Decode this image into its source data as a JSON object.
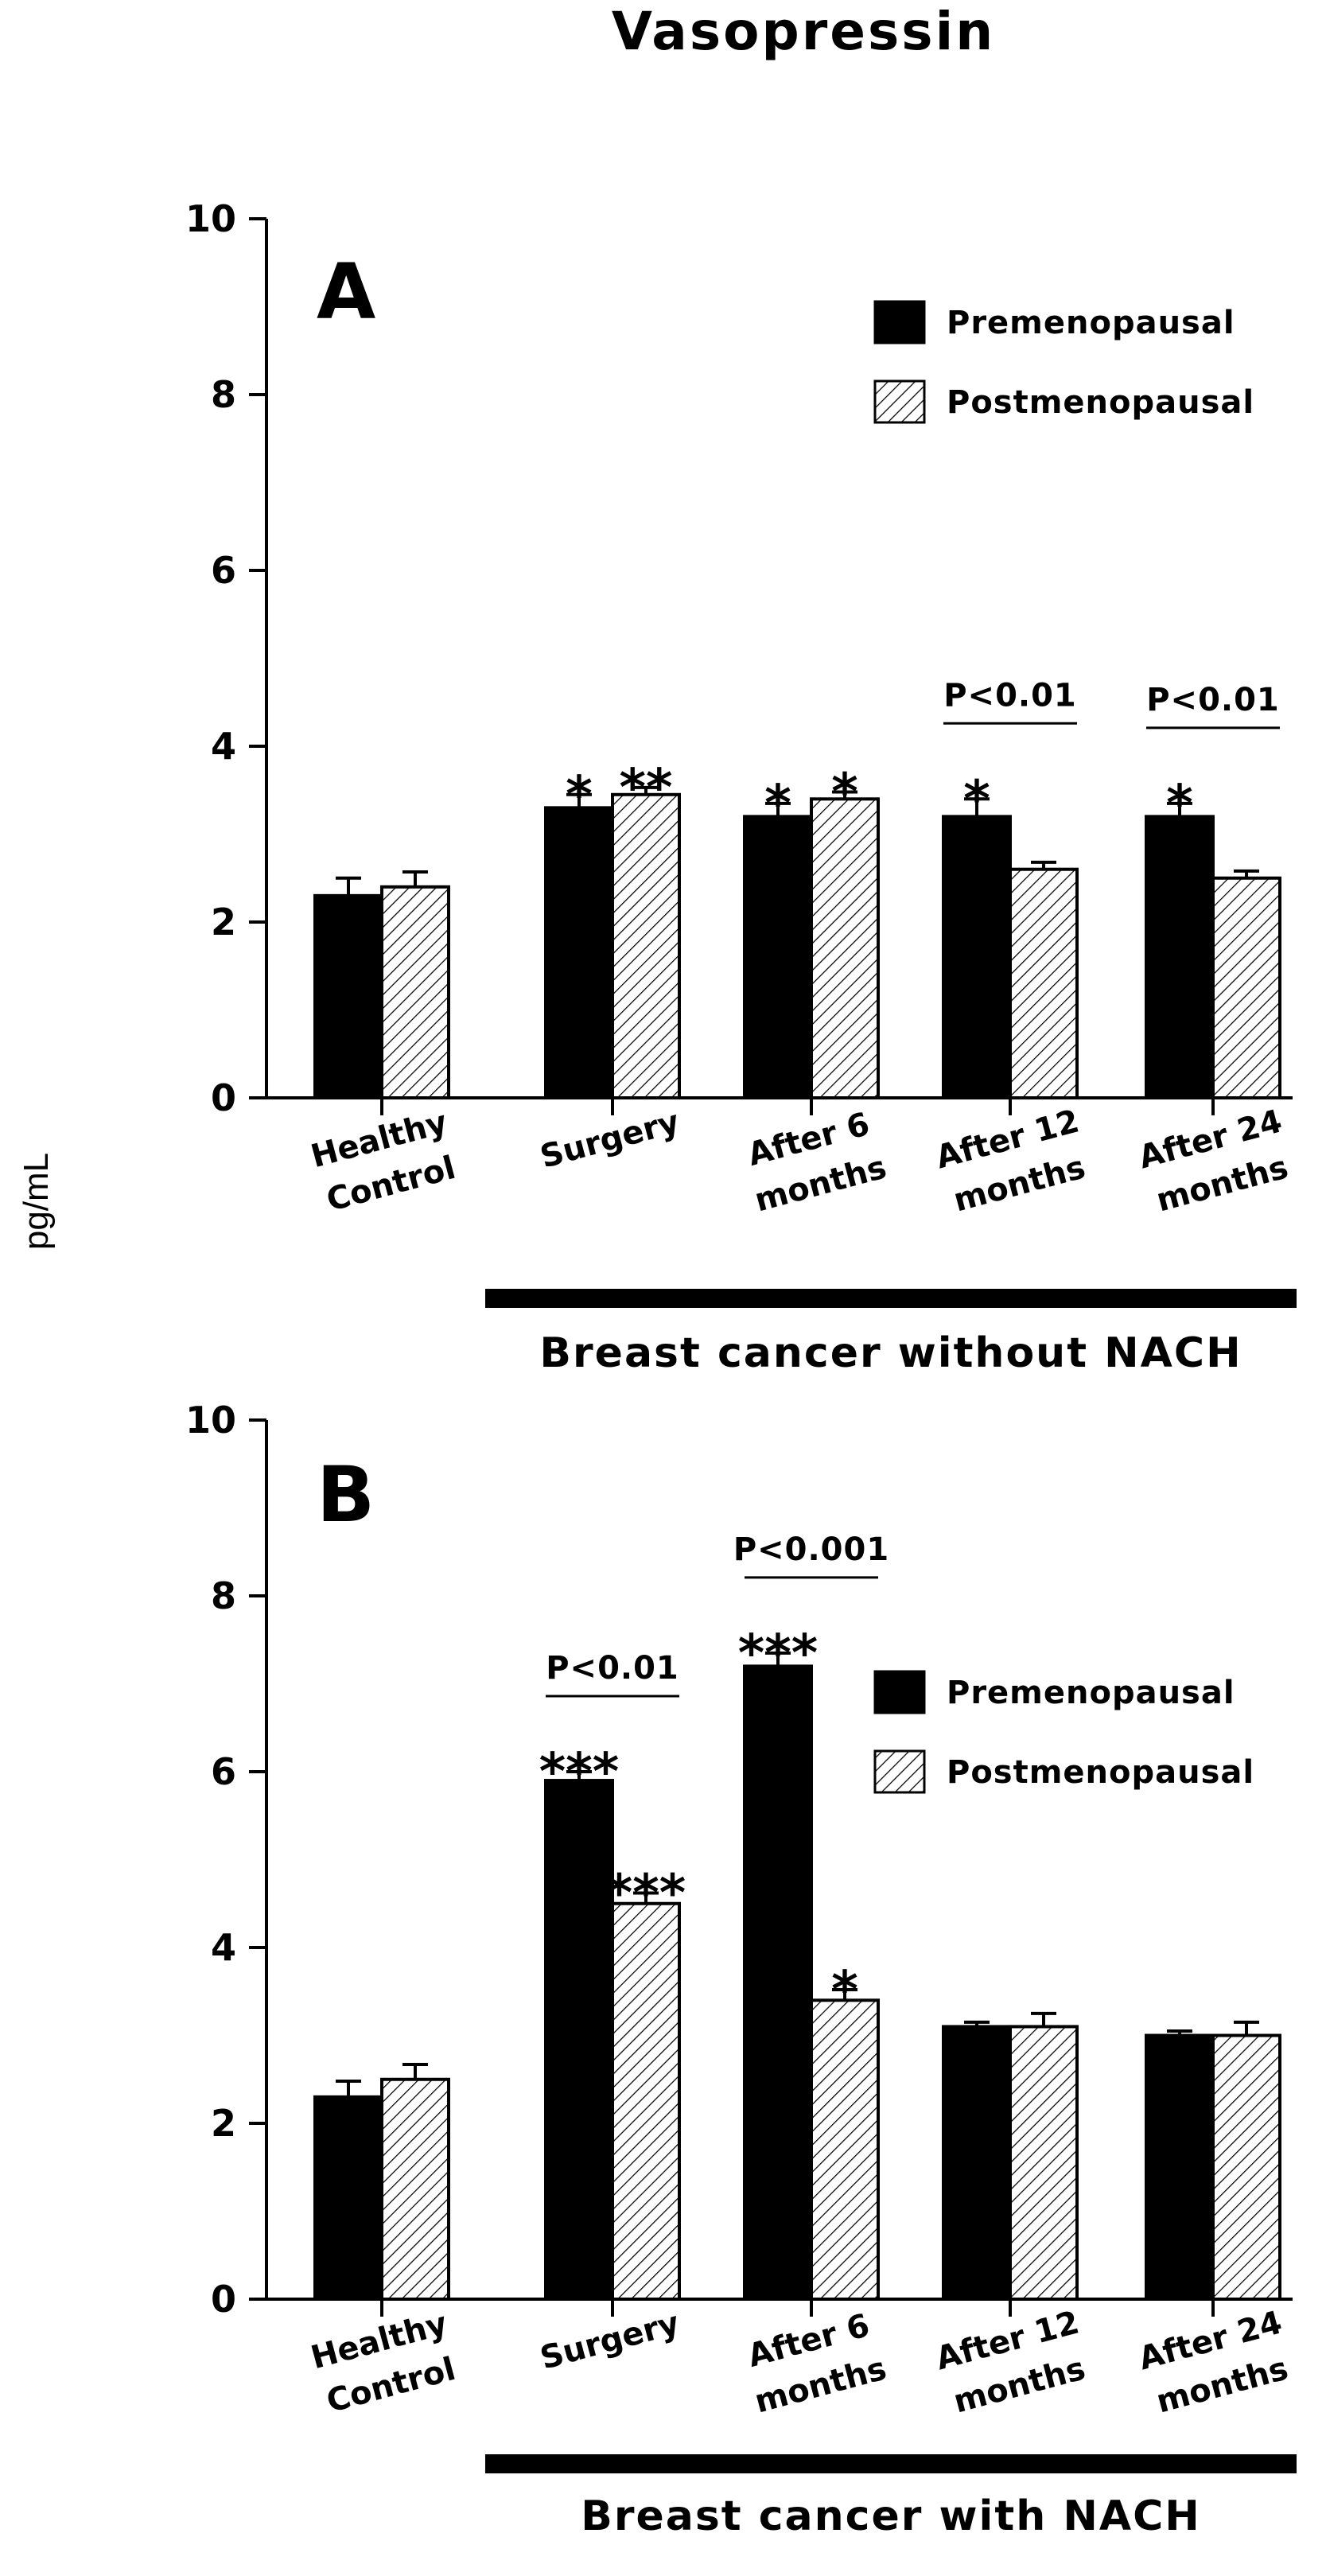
{
  "chart_data": {
    "type": "bar",
    "title": "Vasopressin",
    "ylabel": "pg/mL",
    "ylim": [
      0,
      10
    ],
    "yticks": [
      "0",
      "2",
      "4",
      "6",
      "8",
      "10"
    ],
    "legend": {
      "items": [
        "Premenopausal",
        "Postmenopausal"
      ]
    },
    "panels": [
      {
        "letter": "A",
        "group_label": "Breast cancer without NACH",
        "categories": [
          [
            "Healthy",
            "Control"
          ],
          [
            "Surgery"
          ],
          [
            "After 6",
            "months"
          ],
          [
            "After 12",
            "months"
          ],
          [
            "After 24",
            "months"
          ]
        ],
        "series": [
          {
            "name": "Premenopausal",
            "values": [
              2.3,
              3.3,
              3.2,
              3.2,
              3.2
            ],
            "errors": [
              0.2,
              0.15,
              0.15,
              0.2,
              0.15
            ]
          },
          {
            "name": "Postmenopausal",
            "values": [
              2.4,
              3.45,
              3.4,
              2.6,
              2.5
            ],
            "errors": [
              0.17,
              0.08,
              0.08,
              0.08,
              0.08
            ]
          }
        ],
        "stars": [
          [
            "",
            ""
          ],
          [
            "*",
            "**"
          ],
          [
            "*",
            "*"
          ],
          [
            "*",
            ""
          ],
          [
            "*",
            ""
          ]
        ],
        "pvalues": [
          {
            "category": 3,
            "text": "P<0.01"
          },
          {
            "category": 4,
            "text": "P<0.01"
          }
        ]
      },
      {
        "letter": "B",
        "group_label": "Breast cancer with NACH",
        "categories": [
          [
            "Healthy",
            "Control"
          ],
          [
            "Surgery"
          ],
          [
            "After 6",
            "months"
          ],
          [
            "After 12",
            "months"
          ],
          [
            "After 24",
            "months"
          ]
        ],
        "series": [
          {
            "name": "Premenopausal",
            "values": [
              2.3,
              5.9,
              7.2,
              3.1,
              3.0
            ],
            "errors": [
              0.18,
              0.1,
              0.15,
              0.05,
              0.05
            ]
          },
          {
            "name": "Postmenopausal",
            "values": [
              2.5,
              4.5,
              3.4,
              3.1,
              3.0
            ],
            "errors": [
              0.17,
              0.12,
              0.12,
              0.15,
              0.15
            ]
          }
        ],
        "stars": [
          [
            "",
            ""
          ],
          [
            "***",
            "***"
          ],
          [
            "***",
            "*"
          ],
          [
            "",
            ""
          ],
          [
            "",
            ""
          ]
        ],
        "pvalues": [
          {
            "category": 1,
            "text": "P<0.01"
          },
          {
            "category": 2,
            "text": "P<0.001"
          }
        ]
      }
    ]
  }
}
